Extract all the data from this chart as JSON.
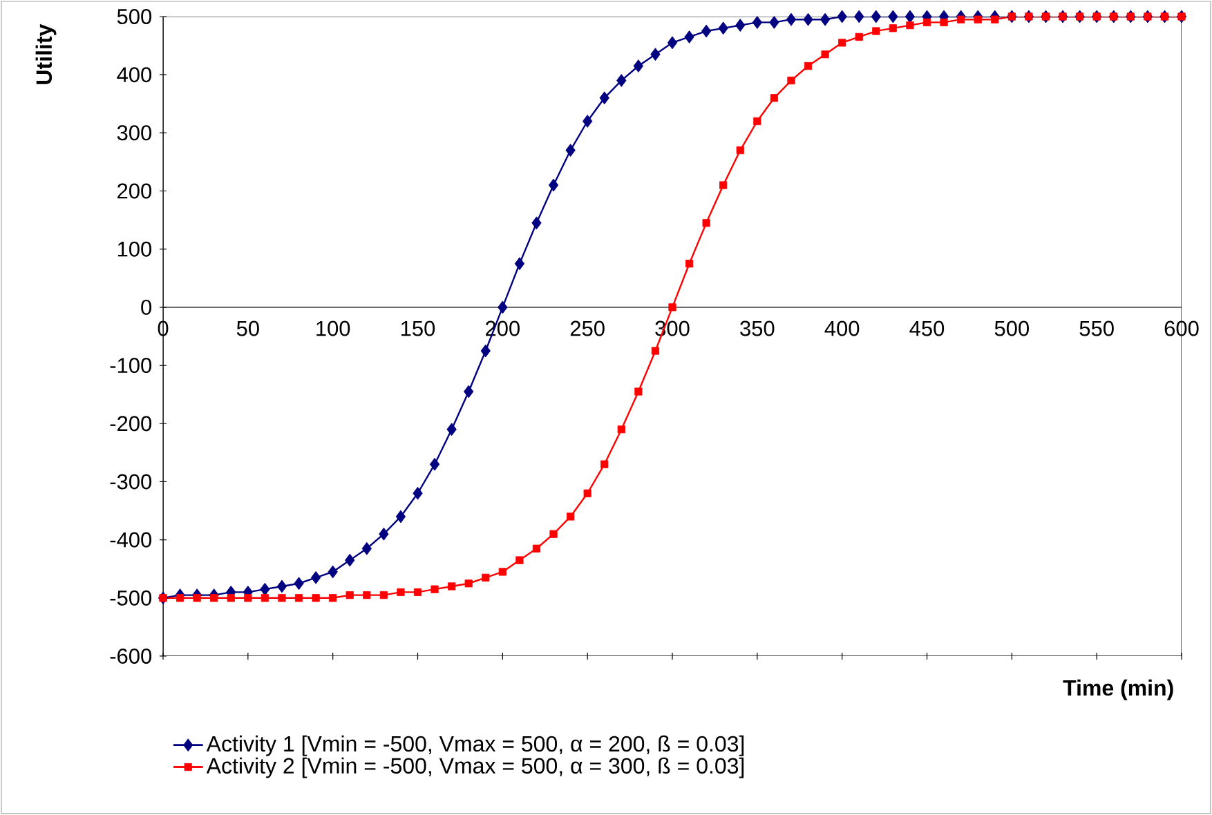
{
  "chart_data": {
    "type": "line",
    "xlabel": "Time (min)",
    "ylabel": "Utility",
    "x": [
      0,
      10,
      20,
      30,
      40,
      50,
      60,
      70,
      80,
      90,
      100,
      110,
      120,
      130,
      140,
      150,
      160,
      170,
      180,
      190,
      200,
      210,
      220,
      230,
      240,
      250,
      260,
      270,
      280,
      290,
      300,
      310,
      320,
      330,
      340,
      350,
      360,
      370,
      380,
      390,
      400,
      410,
      420,
      430,
      440,
      450,
      460,
      470,
      480,
      490,
      500,
      510,
      520,
      530,
      540,
      550,
      560,
      570,
      580,
      590,
      600
    ],
    "series": [
      {
        "name": "Activity 1 [Vmin = -500, Vmax = 500, α = 200, ß = 0.03]",
        "color": "#000080",
        "marker": "diamond",
        "values": [
          -500,
          -495,
          -495,
          -495,
          -490,
          -490,
          -485,
          -480,
          -475,
          -465,
          -455,
          -435,
          -415,
          -390,
          -360,
          -320,
          -270,
          -210,
          -145,
          -75,
          0,
          75,
          145,
          210,
          270,
          320,
          360,
          390,
          415,
          435,
          455,
          465,
          475,
          480,
          485,
          490,
          490,
          495,
          495,
          495,
          500,
          500,
          500,
          500,
          500,
          500,
          500,
          500,
          500,
          500,
          500,
          500,
          500,
          500,
          500,
          500,
          500,
          500,
          500,
          500,
          500
        ]
      },
      {
        "name": "Activity 2 [Vmin = -500, Vmax = 500, α = 300, ß = 0.03]",
        "color": "#ff0000",
        "marker": "square",
        "values": [
          -500,
          -500,
          -500,
          -500,
          -500,
          -500,
          -500,
          -500,
          -500,
          -500,
          -500,
          -495,
          -495,
          -495,
          -490,
          -490,
          -485,
          -480,
          -475,
          -465,
          -455,
          -435,
          -415,
          -390,
          -360,
          -320,
          -270,
          -210,
          -145,
          -75,
          0,
          75,
          145,
          210,
          270,
          320,
          360,
          390,
          415,
          435,
          455,
          465,
          475,
          480,
          485,
          490,
          490,
          495,
          495,
          495,
          500,
          500,
          500,
          500,
          500,
          500,
          500,
          500,
          500,
          500,
          500
        ]
      }
    ],
    "xlim": [
      0,
      600
    ],
    "ylim": [
      -600,
      500
    ],
    "xticks": [
      0,
      50,
      100,
      150,
      200,
      250,
      300,
      350,
      400,
      450,
      500,
      550,
      600
    ],
    "yticks": [
      -600,
      -500,
      -400,
      -300,
      -200,
      -100,
      0,
      100,
      200,
      300,
      400,
      500
    ],
    "legend": "bottom"
  }
}
